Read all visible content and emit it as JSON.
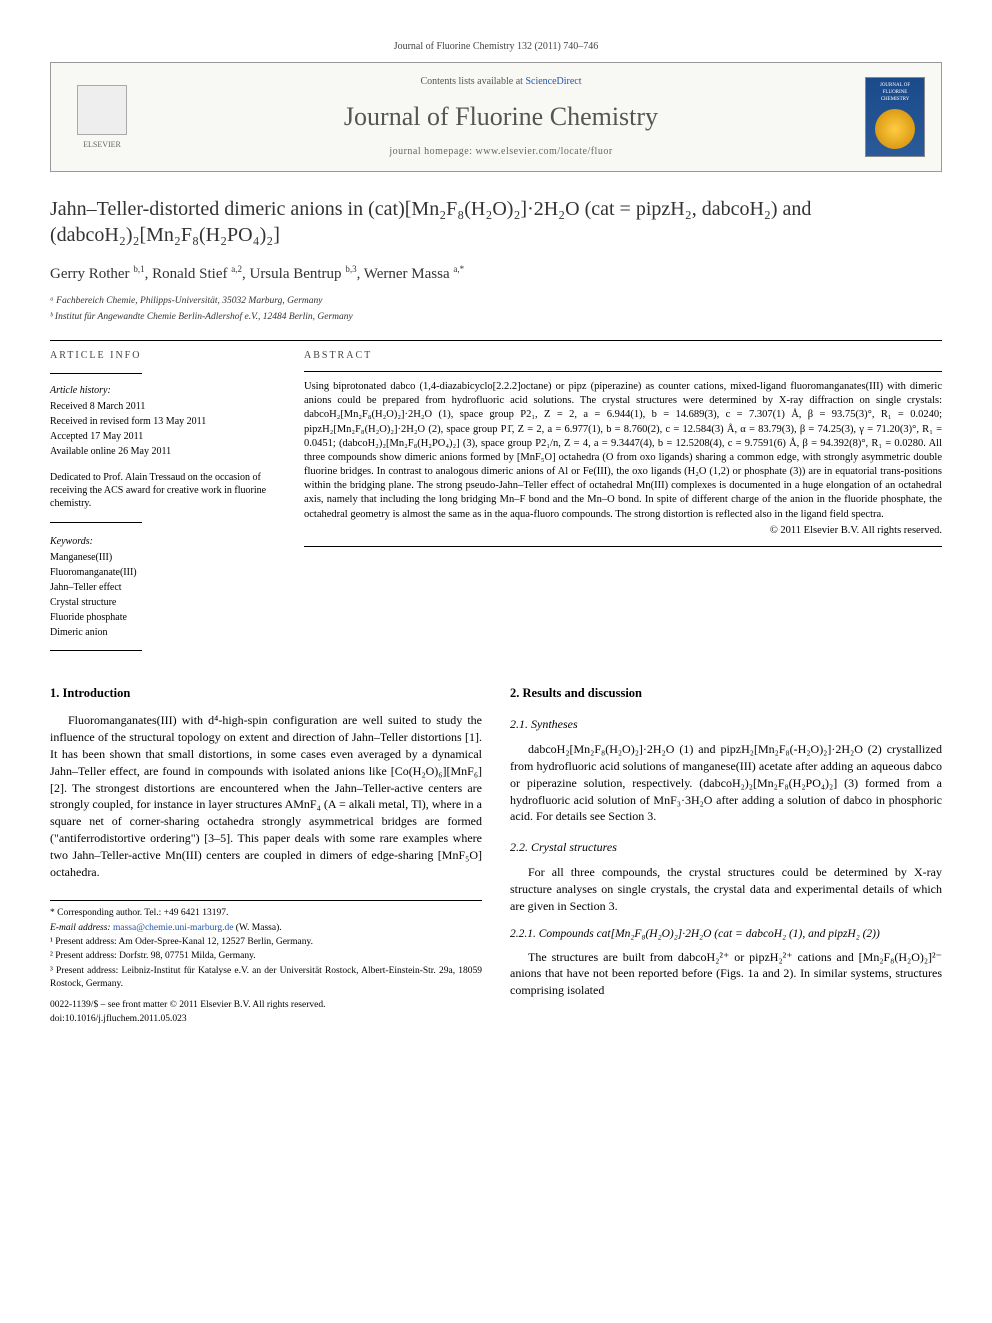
{
  "journal_header": "Journal of Fluorine Chemistry 132 (2011) 740–746",
  "banner": {
    "contents_prefix": "Contents lists available at ",
    "contents_link": "ScienceDirect",
    "journal_title": "Journal of Fluorine Chemistry",
    "homepage_prefix": "journal homepage: ",
    "homepage_url": "www.elsevier.com/locate/fluor",
    "elsevier_label": "ELSEVIER",
    "cover_title": "JOURNAL OF FLUORINE CHEMISTRY"
  },
  "title_html": "Jahn–Teller-distorted dimeric anions in (cat)[Mn₂F₈(H₂O)₂]·2H₂O (cat = pipzH₂, dabcoH₂) and (dabcoH₂)₂[Mn₂F₈(H₂PO₄)₂]",
  "authors_html": "Gerry Rother <sup>b,1</sup>, Ronald Stief <sup>a,2</sup>, Ursula Bentrup <sup>b,3</sup>, Werner Massa <sup>a,*</sup>",
  "affiliations": [
    "ᵃ Fachbereich Chemie, Philipps-Universität, 35032 Marburg, Germany",
    "ᵇ Institut für Angewandte Chemie Berlin-Adlershof e.V., 12484 Berlin, Germany"
  ],
  "article_info": {
    "heading": "ARTICLE INFO",
    "history_label": "Article history:",
    "history": [
      "Received 8 March 2011",
      "Received in revised form 13 May 2011",
      "Accepted 17 May 2011",
      "Available online 26 May 2011"
    ],
    "dedication": "Dedicated to Prof. Alain Tressaud on the occasion of receiving the ACS award for creative work in fluorine chemistry.",
    "keywords_label": "Keywords:",
    "keywords": [
      "Manganese(III)",
      "Fluoromanganate(III)",
      "Jahn–Teller effect",
      "Crystal structure",
      "Fluoride phosphate",
      "Dimeric anion"
    ]
  },
  "abstract": {
    "heading": "ABSTRACT",
    "text": "Using biprotonated dabco (1,4-diazabicyclo[2.2.2]octane) or pipz (piperazine) as counter cations, mixed-ligand fluoromanganates(III) with dimeric anions could be prepared from hydrofluoric acid solutions. The crystal structures were determined by X-ray diffraction on single crystals: dabcoH₂[Mn₂F₈(H₂O)₂]·2H₂O (1), space group P2₁, Z = 2, a = 6.944(1), b = 14.689(3), c = 7.307(1) Å, β = 93.75(3)°, R₁ = 0.0240; pipzH₂[Mn₂F₈(H₂O)₂]·2H₂O (2), space group P1̄, Z = 2, a = 6.977(1), b = 8.760(2), c = 12.584(3) Å, α = 83.79(3), β = 74.25(3), γ = 71.20(3)°, R₁ = 0.0451; (dabcoH₂)₂[Mn₂F₈(H₂PO₄)₂] (3), space group P2₁/n, Z = 4, a = 9.3447(4), b = 12.5208(4), c = 9.7591(6) Å, β = 94.392(8)°, R₁ = 0.0280. All three compounds show dimeric anions formed by [MnF₅O] octahedra (O from oxo ligands) sharing a common edge, with strongly asymmetric double fluorine bridges. In contrast to analogous dimeric anions of Al or Fe(III), the oxo ligands (H₂O (1,2) or phosphate (3)) are in equatorial trans-positions within the bridging plane. The strong pseudo-Jahn–Teller effect of octahedral Mn(III) complexes is documented in a huge elongation of an octahedral axis, namely that including the long bridging Mn–F bond and the Mn–O bond. In spite of different charge of the anion in the fluoride phosphate, the octahedral geometry is almost the same as in the aqua-fluoro compounds. The strong distortion is reflected also in the ligand field spectra.",
    "copyright": "© 2011 Elsevier B.V. All rights reserved."
  },
  "body": {
    "sec1_heading": "1. Introduction",
    "sec1_p1": "Fluoromanganates(III) with d⁴-high-spin configuration are well suited to study the influence of the structural topology on extent and direction of Jahn–Teller distortions [1]. It has been shown that small distortions, in some cases even averaged by a dynamical Jahn–Teller effect, are found in compounds with isolated anions like [Co(H₂O)₆][MnF₆] [2]. The strongest distortions are encountered when the Jahn–Teller-active centers are strongly coupled, for instance in layer structures AMnF₄ (A = alkali metal, Tl), where in a square net of corner-sharing octahedra strongly asymmetrical bridges are formed (\"antiferrodistortive ordering\") [3–5]. This paper deals with some rare examples where two Jahn–Teller-active Mn(III) centers are coupled in dimers of edge-sharing [MnF₅O] octahedra.",
    "sec2_heading": "2. Results and discussion",
    "sec21_heading": "2.1. Syntheses",
    "sec21_p1": "dabcoH₂[Mn₂F₈(H₂O)₂]·2H₂O (1) and pipzH₂[Mn₂F₈(-H₂O)₂]·2H₂O (2) crystallized from hydrofluoric acid solutions of manganese(III) acetate after adding an aqueous dabco or piperazine solution, respectively. (dabcoH₂)₂[Mn₂F₈(H₂PO₄)₂] (3) formed from a hydrofluoric acid solution of MnF₃·3H₂O after adding a solution of dabco in phosphoric acid. For details see Section 3.",
    "sec22_heading": "2.2. Crystal structures",
    "sec22_p1": "For all three compounds, the crystal structures could be determined by X-ray structure analyses on single crystals, the crystal data and experimental details of which are given in Section 3.",
    "sec221_heading": "2.2.1. Compounds cat[Mn₂F₈(H₂O)₂]·2H₂O (cat = dabcoH₂ (1), and pipzH₂ (2))",
    "sec221_p1": "The structures are built from dabcoH₂²⁺ or pipzH₂²⁺ cations and [Mn₂F₈(H₂O)₂]²⁻ anions that have not been reported before (Figs. 1a and 2). In similar systems, structures comprising isolated"
  },
  "footnotes": {
    "corresponding": "* Corresponding author. Tel.: +49 6421 13197.",
    "email_label": "E-mail address: ",
    "email": "massa@chemie.uni-marburg.de",
    "email_suffix": " (W. Massa).",
    "fn1": "¹ Present address: Am Oder-Spree-Kanal 12, 12527 Berlin, Germany.",
    "fn2": "² Present address: Dorfstr. 98, 07751 Milda, Germany.",
    "fn3": "³ Present address: Leibniz-Institut für Katalyse e.V. an der Universität Rostock, Albert-Einstein-Str. 29a, 18059 Rostock, Germany."
  },
  "doi": {
    "line1": "0022-1139/$ – see front matter © 2011 Elsevier B.V. All rights reserved.",
    "line2": "doi:10.1016/j.jfluchem.2011.05.023"
  },
  "colors": {
    "link": "#2255aa",
    "border": "#999",
    "text": "#000",
    "muted": "#555"
  }
}
